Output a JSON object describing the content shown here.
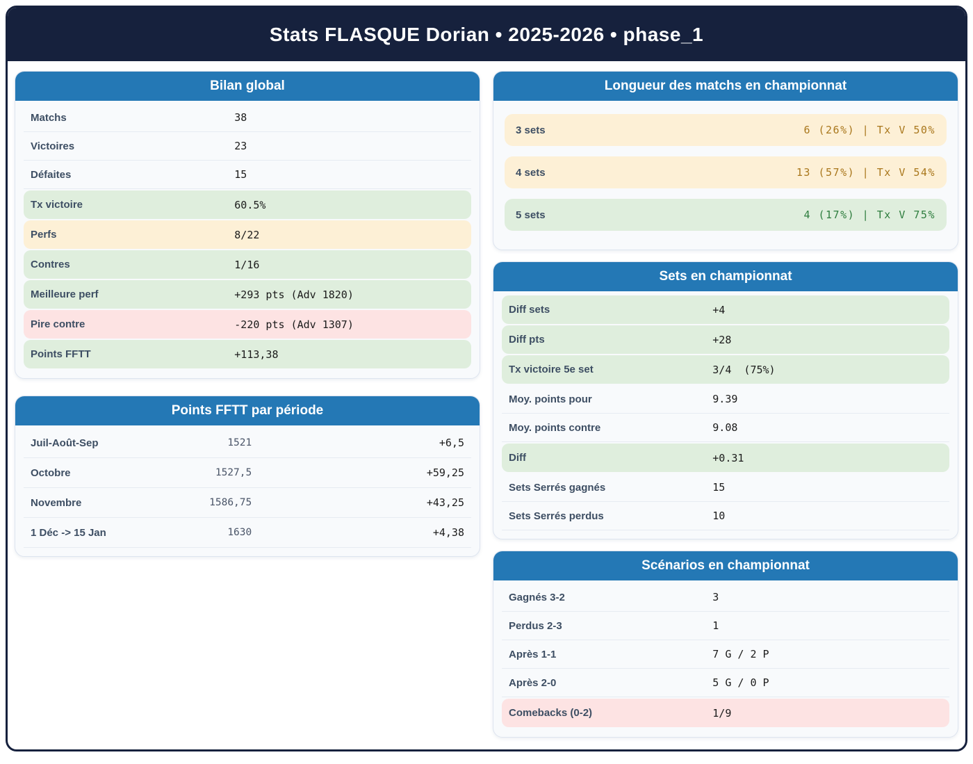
{
  "title": "Stats FLASQUE Dorian • 2025-2026 • phase_1",
  "colors": {
    "navy": "#16213d",
    "header_blue": "#2478b5",
    "highlight_green_bg": "#dfeedd",
    "highlight_yellow_bg": "#fdf0d6",
    "highlight_pink_bg": "#fde3e3",
    "value_orange_text": "#a9771c",
    "value_green_text": "#2e7d3e",
    "label_text": "#3d4e63"
  },
  "cards": {
    "bilan": {
      "title": "Bilan global",
      "rows": [
        {
          "label": "Matchs",
          "value": "38",
          "hl": "none"
        },
        {
          "label": "Victoires",
          "value": "23",
          "hl": "none"
        },
        {
          "label": "Défaites",
          "value": "15",
          "hl": "none"
        },
        {
          "label": "Tx victoire",
          "value": "60.5%",
          "hl": "green"
        },
        {
          "label": "Perfs",
          "value": "8/22",
          "hl": "yellow"
        },
        {
          "label": "Contres",
          "value": "1/16",
          "hl": "green"
        },
        {
          "label": "Meilleure perf",
          "value": "+293 pts (Adv 1820)",
          "hl": "green"
        },
        {
          "label": "Pire contre",
          "value": "-220 pts (Adv 1307)",
          "hl": "pink"
        },
        {
          "label": "Points FFTT",
          "value": "+113,38",
          "hl": "green"
        }
      ]
    },
    "periodes": {
      "title": "Points FFTT par période",
      "rows": [
        {
          "label": "Juil-Août-Sep",
          "points": "1521",
          "delta": "+6,5"
        },
        {
          "label": "Octobre",
          "points": "1527,5",
          "delta": "+59,25"
        },
        {
          "label": "Novembre",
          "points": "1586,75",
          "delta": "+43,25"
        },
        {
          "label": "1 Déc -> 15 Jan",
          "points": "1630",
          "delta": "+4,38"
        }
      ]
    },
    "longueur": {
      "title": "Longueur des matchs en championnat",
      "rows": [
        {
          "label": "3 sets",
          "value": "6 (26%) | Tx V 50%",
          "tone": "yellow"
        },
        {
          "label": "4 sets",
          "value": "13 (57%) | Tx V 54%",
          "tone": "yellow"
        },
        {
          "label": "5 sets",
          "value": "4 (17%) | Tx V 75%",
          "tone": "green"
        }
      ]
    },
    "sets": {
      "title": "Sets en championnat",
      "rows": [
        {
          "label": "Diff sets",
          "value": "+4",
          "hl": "green"
        },
        {
          "label": "Diff pts",
          "value": "+28",
          "hl": "green"
        },
        {
          "label": "Tx victoire 5e set",
          "value": "3/4  (75%)",
          "hl": "green"
        },
        {
          "label": "Moy. points pour",
          "value": "9.39",
          "hl": "none"
        },
        {
          "label": "Moy. points contre",
          "value": "9.08",
          "hl": "none"
        },
        {
          "label": "Diff",
          "value": "+0.31",
          "hl": "green"
        },
        {
          "label": "Sets Serrés gagnés",
          "value": "15",
          "hl": "none"
        },
        {
          "label": "Sets Serrés perdus",
          "value": "10",
          "hl": "none"
        }
      ]
    },
    "scenarios": {
      "title": "Scénarios en championnat",
      "rows": [
        {
          "label": "Gagnés 3-2",
          "value": "3",
          "hl": "none"
        },
        {
          "label": "Perdus 2-3",
          "value": "1",
          "hl": "none"
        },
        {
          "label": "Après 1-1",
          "value": "7 G / 2 P",
          "hl": "none"
        },
        {
          "label": "Après 2-0",
          "value": "5 G / 0 P",
          "hl": "none"
        },
        {
          "label": "Comebacks (0-2)",
          "value": "1/9",
          "hl": "pink"
        }
      ]
    }
  }
}
